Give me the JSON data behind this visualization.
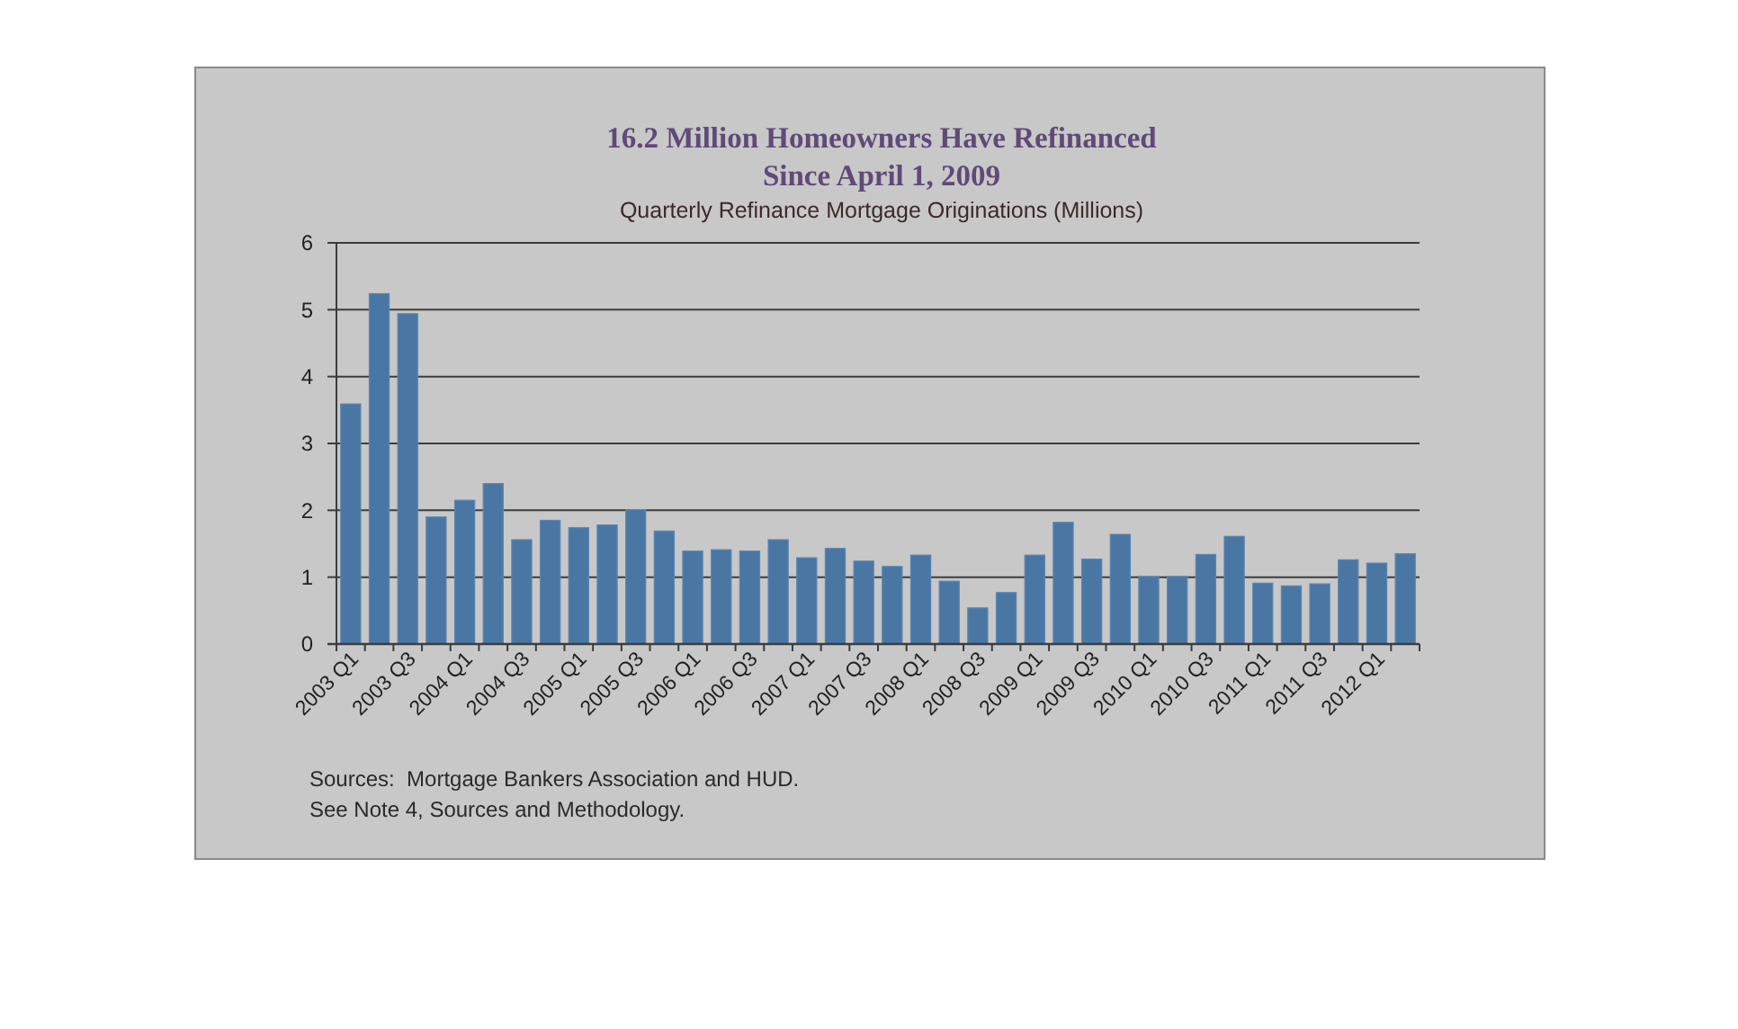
{
  "chart_data": {
    "type": "bar",
    "title": "16.2 Million Homeowners Have Refinanced\nSince April 1, 2009",
    "subtitle": "Quarterly Refinance Mortgage Originations (Millions)",
    "categories": [
      "2003 Q1",
      null,
      "2003 Q3",
      null,
      "2004 Q1",
      null,
      "2004 Q3",
      null,
      "2005 Q1",
      null,
      "2005 Q3",
      null,
      "2006 Q1",
      null,
      "2006 Q3",
      null,
      "2007 Q1",
      null,
      "2007 Q3",
      null,
      "2008 Q1",
      null,
      "2008 Q3",
      null,
      "2009 Q1",
      null,
      "2009 Q3",
      null,
      "2010 Q1",
      null,
      "2010 Q3",
      null,
      "2011 Q1",
      null,
      "2011 Q3",
      null,
      "2012 Q1",
      null
    ],
    "values": [
      3.59,
      5.24,
      4.94,
      1.9,
      2.15,
      2.4,
      1.56,
      1.85,
      1.74,
      1.78,
      2.01,
      1.69,
      1.39,
      1.41,
      1.39,
      1.56,
      1.29,
      1.43,
      1.24,
      1.16,
      1.33,
      0.94,
      0.54,
      0.77,
      1.33,
      1.82,
      1.27,
      1.64,
      1.01,
      1.01,
      1.34,
      1.61,
      0.91,
      0.87,
      0.9,
      1.26,
      1.21,
      1.35
    ],
    "color": "#4a76a3",
    "ylim": [
      0,
      6
    ],
    "yticks": [
      0,
      1,
      2,
      3,
      4,
      5,
      6
    ],
    "grid": "y",
    "annotations": [
      "Sources:  Mortgage Bankers Association and HUD.",
      "See Note 4, Sources and Methodology."
    ]
  }
}
